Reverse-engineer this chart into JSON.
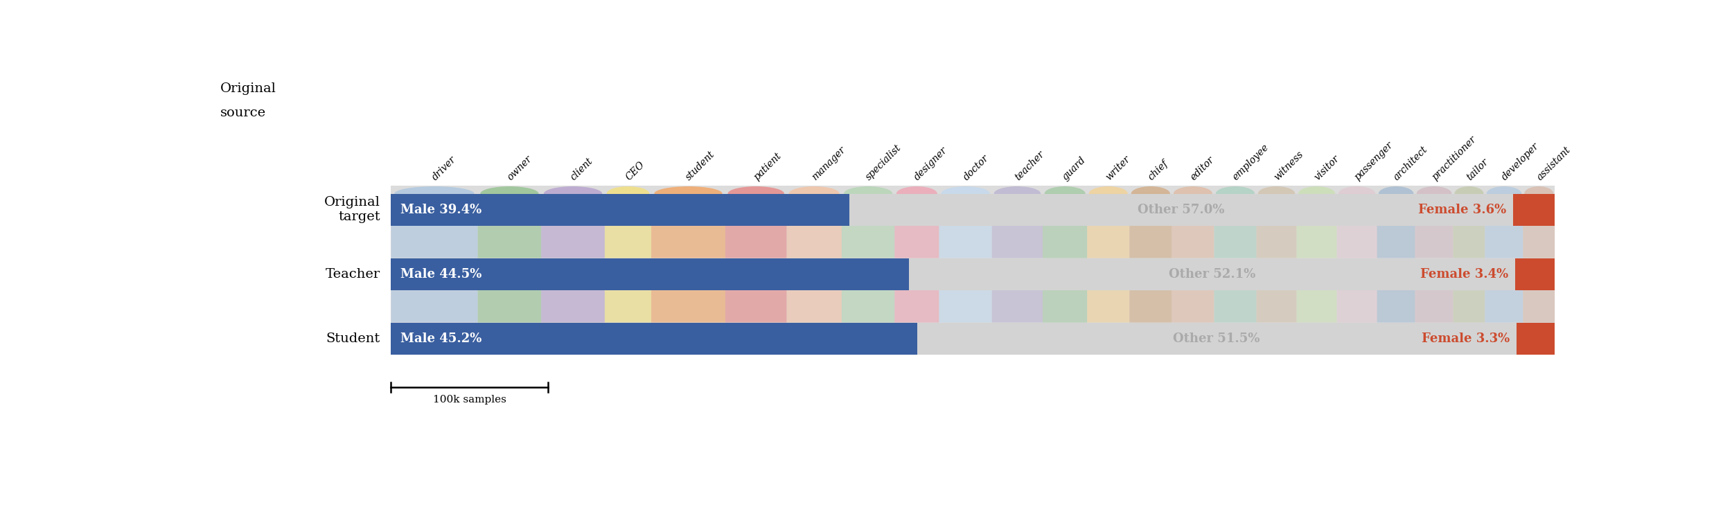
{
  "categories": [
    "driver",
    "owner",
    "client",
    "CEO",
    "student",
    "patient",
    "manager",
    "specialist",
    "designer",
    "doctor",
    "teacher",
    "guard",
    "writer",
    "chief",
    "editor",
    "employee",
    "witness",
    "visitor",
    "passenger",
    "architect",
    "practitioner",
    "tailor",
    "developer",
    "assistant"
  ],
  "rows": [
    {
      "label_left": "Original\ntarget",
      "male_pct": 39.4,
      "other_pct": 57.0,
      "female_pct": 3.6
    },
    {
      "label_left": "Teacher",
      "male_pct": 44.5,
      "other_pct": 52.1,
      "female_pct": 3.4
    },
    {
      "label_left": "Student",
      "male_pct": 45.2,
      "other_pct": 51.5,
      "female_pct": 3.3
    }
  ],
  "top_label_line1": "Original",
  "top_label_line2": "source",
  "male_color": "#3a5fa0",
  "other_color": "#d3d3d3",
  "female_color": "#cc4b2e",
  "flow_bg_color": "#dcdcdc",
  "white": "#ffffff",
  "category_colors": [
    "#a8c4e0",
    "#8fc08a",
    "#b39dcc",
    "#f5e176",
    "#f5a05a",
    "#e88080",
    "#f5c0a0",
    "#b0d4b0",
    "#f0a0b0",
    "#c0d8f0",
    "#b8b0d0",
    "#a0c8a0",
    "#f5d090",
    "#d0a880",
    "#e0b8a0",
    "#a8d0c0",
    "#d0c0a8",
    "#c8e0b0",
    "#e0c8d0",
    "#a0b8d0",
    "#d0b8c0",
    "#c0c8a8",
    "#b0c8e0",
    "#d8b8a8"
  ],
  "cat_weights_raw": [
    8.2,
    6.0,
    6.0,
    4.4,
    7.0,
    5.8,
    5.2,
    5.0,
    4.2,
    5.0,
    4.8,
    4.2,
    4.0,
    4.0,
    4.0,
    4.0,
    3.8,
    3.8,
    3.8,
    3.6,
    3.6,
    3.0,
    3.6,
    3.0
  ],
  "figsize": [
    25.0,
    7.55
  ],
  "dpi": 100
}
